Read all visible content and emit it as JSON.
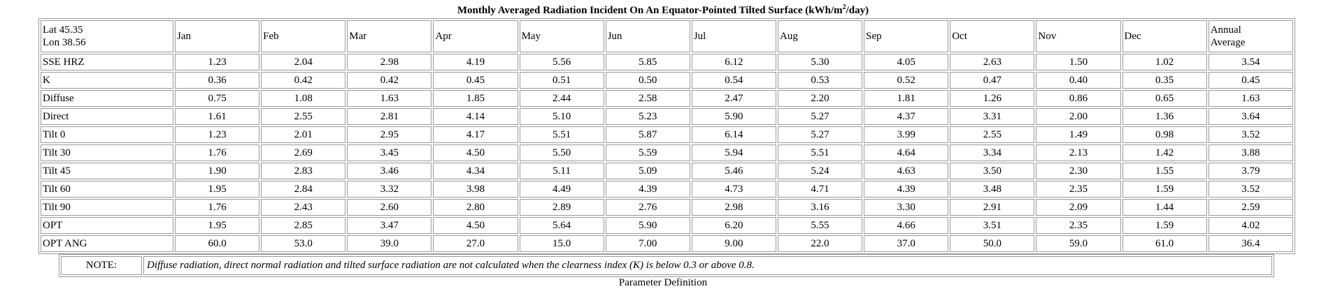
{
  "title": {
    "main": "Monthly Averaged Radiation Incident On An Equator-Pointed Tilted Surface (kWh/m",
    "sup": "2",
    "tail": "/day)"
  },
  "table": {
    "corner": {
      "lat": "Lat 45.35",
      "lon": "Lon 38.56"
    },
    "columns": [
      "Jan",
      "Feb",
      "Mar",
      "Apr",
      "May",
      "Jun",
      "Jul",
      "Aug",
      "Sep",
      "Oct",
      "Nov",
      "Dec"
    ],
    "annual_header": {
      "line1": "Annual",
      "line2": "Average"
    },
    "rows": [
      {
        "label": "SSE HRZ",
        "values": [
          "1.23",
          "2.04",
          "2.98",
          "4.19",
          "5.56",
          "5.85",
          "6.12",
          "5.30",
          "4.05",
          "2.63",
          "1.50",
          "1.02",
          "3.54"
        ]
      },
      {
        "label": "K",
        "values": [
          "0.36",
          "0.42",
          "0.42",
          "0.45",
          "0.51",
          "0.50",
          "0.54",
          "0.53",
          "0.52",
          "0.47",
          "0.40",
          "0.35",
          "0.45"
        ]
      },
      {
        "label": "Diffuse",
        "values": [
          "0.75",
          "1.08",
          "1.63",
          "1.85",
          "2.44",
          "2.58",
          "2.47",
          "2.20",
          "1.81",
          "1.26",
          "0.86",
          "0.65",
          "1.63"
        ]
      },
      {
        "label": "Direct",
        "values": [
          "1.61",
          "2.55",
          "2.81",
          "4.14",
          "5.10",
          "5.23",
          "5.90",
          "5.27",
          "4.37",
          "3.31",
          "2.00",
          "1.36",
          "3.64"
        ]
      },
      {
        "label": "Tilt 0",
        "values": [
          "1.23",
          "2.01",
          "2.95",
          "4.17",
          "5.51",
          "5.87",
          "6.14",
          "5.27",
          "3.99",
          "2.55",
          "1.49",
          "0.98",
          "3.52"
        ]
      },
      {
        "label": "Tilt 30",
        "values": [
          "1.76",
          "2.69",
          "3.45",
          "4.50",
          "5.50",
          "5.59",
          "5.94",
          "5.51",
          "4.64",
          "3.34",
          "2.13",
          "1.42",
          "3.88"
        ]
      },
      {
        "label": "Tilt 45",
        "values": [
          "1.90",
          "2.83",
          "3.46",
          "4.34",
          "5.11",
          "5.09",
          "5.46",
          "5.24",
          "4.63",
          "3.50",
          "2.30",
          "1.55",
          "3.79"
        ]
      },
      {
        "label": "Tilt 60",
        "values": [
          "1.95",
          "2.84",
          "3.32",
          "3.98",
          "4.49",
          "4.39",
          "4.73",
          "4.71",
          "4.39",
          "3.48",
          "2.35",
          "1.59",
          "3.52"
        ]
      },
      {
        "label": "Tilt 90",
        "values": [
          "1.76",
          "2.43",
          "2.60",
          "2.80",
          "2.89",
          "2.76",
          "2.98",
          "3.16",
          "3.30",
          "2.91",
          "2.09",
          "1.44",
          "2.59"
        ]
      },
      {
        "label": "OPT",
        "values": [
          "1.95",
          "2.85",
          "3.47",
          "4.50",
          "5.64",
          "5.90",
          "6.20",
          "5.55",
          "4.66",
          "3.51",
          "2.35",
          "1.59",
          "4.02"
        ]
      },
      {
        "label": "OPT ANG",
        "values": [
          "60.0",
          "53.0",
          "39.0",
          "27.0",
          "15.0",
          "7.00",
          "9.00",
          "22.0",
          "37.0",
          "50.0",
          "59.0",
          "61.0",
          "36.4"
        ]
      }
    ]
  },
  "note": {
    "label": "NOTE:",
    "text": "Diffuse radiation, direct normal radiation and tilted surface radiation are not calculated when the clearness index (K) is below 0.3 or above 0.8."
  },
  "footer": {
    "partial_text": "Parameter Definition"
  }
}
